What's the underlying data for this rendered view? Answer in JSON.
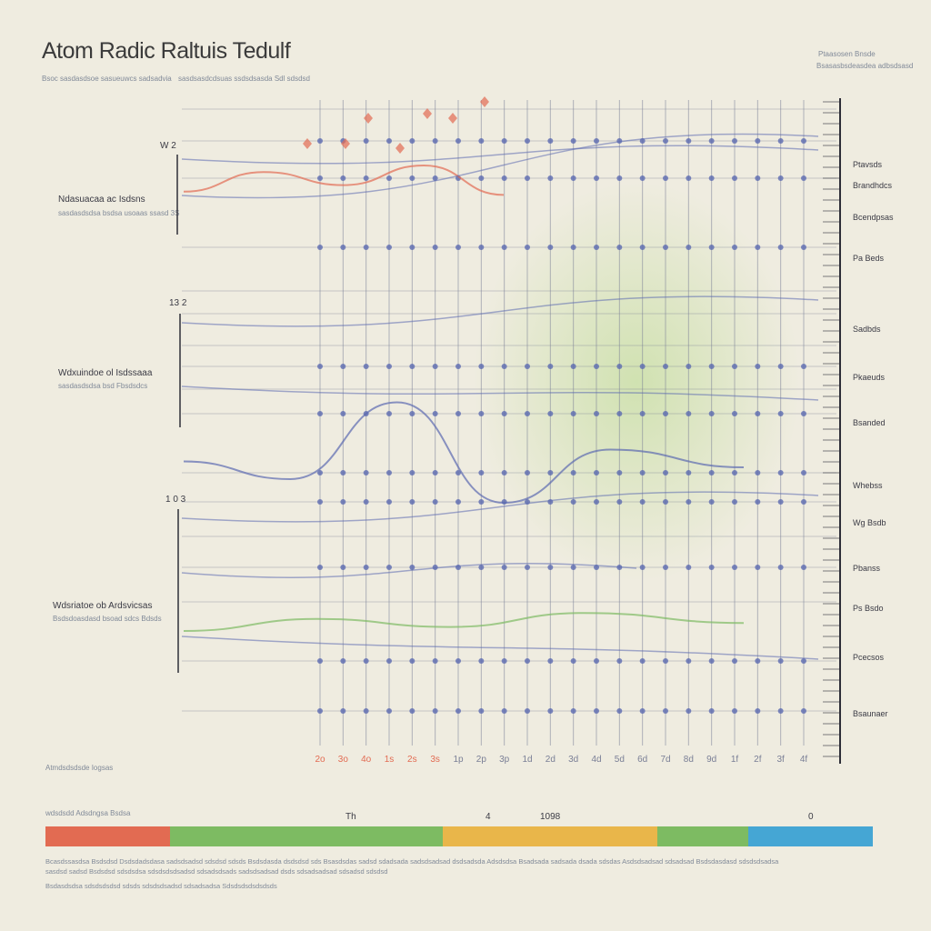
{
  "colors": {
    "background": "#efece0",
    "grid": "#7a7f96",
    "red": "#e26b52",
    "blue": "#5b6ab0",
    "green": "#7dbb62",
    "yellow": "#e9b64a",
    "cyan": "#45a6d4"
  },
  "chart_data": {
    "type": "line",
    "title": "Atom Radic Raltuis Tedulf",
    "x_ticks": [
      "2o",
      "3o",
      "4o",
      "1s",
      "2s",
      "3s",
      "1p",
      "2p",
      "3p",
      "1d",
      "2d",
      "3d",
      "4d",
      "5d",
      "6d",
      "7d",
      "8d",
      "9d",
      "1f",
      "2f",
      "3f",
      "4f"
    ],
    "groups": [
      {
        "label": "Ndasuacaa ac Isdsns",
        "marker": "W 2"
      },
      {
        "label": "Wdxuindoe ol Isdssaaa",
        "marker": "13 2"
      },
      {
        "label": "Wdsriatoe ob Ardsvicsas",
        "marker": "1 0 3"
      }
    ],
    "right_labels": [
      "Ptavsds",
      "Brandhdcs",
      "Bcendpsas",
      "Pa Beds",
      "Sadbds",
      "Pkaeuds",
      "Bsanded",
      "Whebss",
      "Wg Bsdb",
      "Pbanss",
      "Ps Bsdo",
      "Pcecsos",
      "Bsaunaer"
    ],
    "scale_labels": [
      "Th",
      "4",
      "1098",
      "0"
    ],
    "series": [
      {
        "name": "",
        "color": "red",
        "points": [
          [
            0,
            0.72
          ],
          [
            3,
            0.78
          ],
          [
            6,
            0.74
          ],
          [
            9,
            0.8
          ],
          [
            12,
            0.71
          ]
        ]
      },
      {
        "name": "",
        "color": "blue",
        "points": [
          [
            0,
            0.45
          ],
          [
            4,
            0.42
          ],
          [
            8,
            0.55
          ],
          [
            12,
            0.38
          ],
          [
            16,
            0.47
          ],
          [
            21,
            0.44
          ]
        ]
      },
      {
        "name": "",
        "color": "green",
        "points": [
          [
            0,
            0.3
          ],
          [
            5,
            0.36
          ],
          [
            10,
            0.32
          ],
          [
            15,
            0.39
          ],
          [
            21,
            0.34
          ]
        ]
      }
    ],
    "legend": [
      {
        "color": "red",
        "share": 0.15
      },
      {
        "color": "green",
        "share": 0.33
      },
      {
        "color": "yellow",
        "share": 0.26
      },
      {
        "color": "green",
        "share": 0.11
      },
      {
        "color": "cyan",
        "share": 0.15
      }
    ]
  },
  "texts": {
    "subtitle_left": "Bsoc sasdasdsoe sasueuwcs sadsadvia",
    "subtitle_right": "sasdsasdcdsuas ssdsdsasda Sdl sdsdsd",
    "group1_sub": "sasdasdsdsa bsdsa usoaas ssasd 3S",
    "group2_sub": "sasdasdsdsa bsd Fbsdsdcs",
    "group3_sub": "Bsdsdoasdasd bsoad sdcs Bdsds",
    "bottom_left": "Atmdsdsdsde Iogsas",
    "legend_caption": "wdsdsdd Adsdngsa Bsdsa",
    "top_right_1": "Ptaasosen Bnsde",
    "top_right_2": "Bsasasbsdeasdea adbsdsasd",
    "footer1": "Bcasdssasdsa Bsdsdsd Dsdsdadsdasa sadsdsadsd sdsdsd sdsds Bsdsdasda dsdsdsd sds Bsasdsdas sadsd sdadsada sadsdsadsad dsdsadsda Adsdsdsa Bsadsada sadsada dsada sdsdas Asdsdsadsad sdsadsad Bsdsdasdasd sdsdsdsadsa",
    "footer2": "sasdsd sadsd Bsdsdsd sdsdsdsa sdsdsdsdsadsd sdsadsdsads sadsdsadsad dsds sdsadsadsad sdsadsd sdsdsd",
    "footer3": "Bsdasdsdsa sdsdsdsdsd sdsds sdsdsdsadsd sdsadsadsa Sdsdsdsdsdsdsds"
  }
}
